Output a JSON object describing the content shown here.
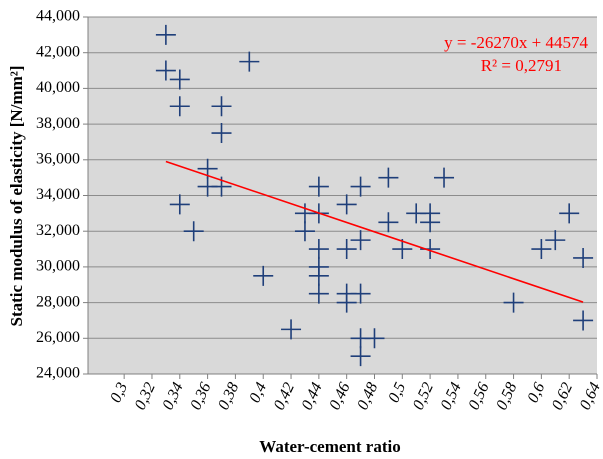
{
  "chart_data": {
    "type": "scatter",
    "x_label": "Water-cement ratio",
    "y_label": "Static modulus of elasticity [N/mm²]",
    "series": [
      {
        "color": "#1f3f7a",
        "x": [
          0.33,
          0.33,
          0.34,
          0.34,
          0.34,
          0.35,
          0.36,
          0.36,
          0.37,
          0.37,
          0.37,
          0.39,
          0.4,
          0.42,
          0.43,
          0.43,
          0.44,
          0.44,
          0.44,
          0.44,
          0.44,
          0.44,
          0.46,
          0.46,
          0.46,
          0.46,
          0.47,
          0.47,
          0.47,
          0.47,
          0.47,
          0.48,
          0.49,
          0.49,
          0.5,
          0.51,
          0.52,
          0.52,
          0.52,
          0.53,
          0.58,
          0.6,
          0.61,
          0.62,
          0.63,
          0.63
        ],
        "values": [
          43000,
          41000,
          40500,
          39000,
          33500,
          32000,
          35500,
          34500,
          39000,
          37500,
          34500,
          41500,
          29500,
          26500,
          33000,
          32000,
          34500,
          33000,
          31000,
          30000,
          29500,
          28500,
          33500,
          31000,
          28500,
          28000,
          34500,
          31500,
          28500,
          26000,
          25000,
          26000,
          35000,
          32500,
          31000,
          33000,
          33000,
          32500,
          31000,
          35000,
          28000,
          31000,
          31500,
          33000,
          30500,
          27000
        ]
      }
    ],
    "trendline": {
      "color": "#ff0000",
      "equation": "y = -26270x + 44574",
      "r2": "R² = 0,2791",
      "x": [
        0.33,
        0.63
      ],
      "values": [
        35905,
        28024
      ]
    },
    "xlim": [
      0.274,
      0.64
    ],
    "xticks": [
      {
        "value": 0.3,
        "label": "0,3"
      },
      {
        "value": 0.32,
        "label": "0,32"
      },
      {
        "value": 0.34,
        "label": "0,34"
      },
      {
        "value": 0.36,
        "label": "0,36"
      },
      {
        "value": 0.38,
        "label": "0,38"
      },
      {
        "value": 0.4,
        "label": "0,4"
      },
      {
        "value": 0.42,
        "label": "0,42"
      },
      {
        "value": 0.44,
        "label": "0,44"
      },
      {
        "value": 0.46,
        "label": "0,46"
      },
      {
        "value": 0.48,
        "label": "0,48"
      },
      {
        "value": 0.5,
        "label": "0,5"
      },
      {
        "value": 0.52,
        "label": "0,52"
      },
      {
        "value": 0.54,
        "label": "0,54"
      },
      {
        "value": 0.56,
        "label": "0,56"
      },
      {
        "value": 0.58,
        "label": "0,58"
      },
      {
        "value": 0.6,
        "label": "0,6"
      },
      {
        "value": 0.62,
        "label": "0,62"
      },
      {
        "value": 0.64,
        "label": "0,64"
      }
    ],
    "ylim": [
      24000,
      44000
    ],
    "yticks": [
      {
        "value": 24000,
        "label": "24,000"
      },
      {
        "value": 26000,
        "label": "26,000"
      },
      {
        "value": 28000,
        "label": "28,000"
      },
      {
        "value": 30000,
        "label": "30,000"
      },
      {
        "value": 32000,
        "label": "32,000"
      },
      {
        "value": 34000,
        "label": "34,000"
      },
      {
        "value": 36000,
        "label": "36,000"
      },
      {
        "value": 38000,
        "label": "38,000"
      },
      {
        "value": 40000,
        "label": "40,000"
      },
      {
        "value": 42000,
        "label": "42,000"
      },
      {
        "value": 44000,
        "label": "44,000"
      }
    ],
    "grid": true,
    "plot_background": "#d9d9d9"
  }
}
